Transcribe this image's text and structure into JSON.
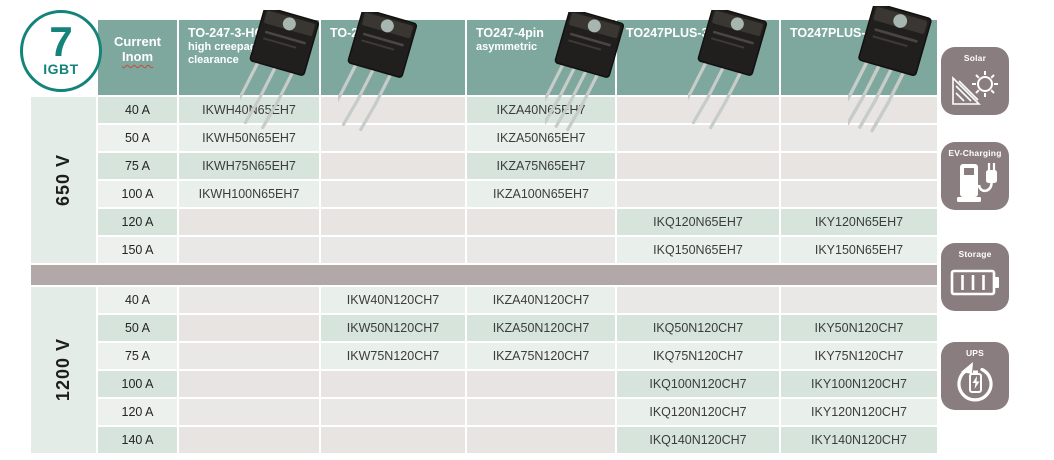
{
  "badge": {
    "number": "7",
    "label": "IGBT"
  },
  "header": {
    "current_label": "Current",
    "current_sub": "Inom",
    "columns": [
      {
        "label": "TO-247-3-HCC",
        "sublabel": "high creepage, high clearance"
      },
      {
        "label": "TO-247-3",
        "sublabel": ""
      },
      {
        "label": "TO247-4pin",
        "sublabel": "asymmetric"
      },
      {
        "label": "TO247PLUS-3pin",
        "sublabel": ""
      },
      {
        "label": "TO247PLUS-4pin",
        "sublabel": ""
      }
    ]
  },
  "sections": [
    {
      "voltage": "650 V",
      "rows": [
        {
          "current": "40 A",
          "parts": [
            "IKWH40N65EH7",
            "",
            "IKZA40N65EH7",
            "",
            ""
          ]
        },
        {
          "current": "50 A",
          "parts": [
            "IKWH50N65EH7",
            "",
            "IKZA50N65EH7",
            "",
            ""
          ]
        },
        {
          "current": "75 A",
          "parts": [
            "IKWH75N65EH7",
            "",
            "IKZA75N65EH7",
            "",
            ""
          ]
        },
        {
          "current": "100 A",
          "parts": [
            "IKWH100N65EH7",
            "",
            "IKZA100N65EH7",
            "",
            ""
          ]
        },
        {
          "current": "120 A",
          "parts": [
            "",
            "",
            "",
            "IKQ120N65EH7",
            "IKY120N65EH7"
          ]
        },
        {
          "current": "150 A",
          "parts": [
            "",
            "",
            "",
            "IKQ150N65EH7",
            "IKY150N65EH7"
          ]
        }
      ]
    },
    {
      "voltage": "1200 V",
      "rows": [
        {
          "current": "40 A",
          "parts": [
            "",
            "IKW40N120CH7",
            "IKZA40N120CH7",
            "",
            ""
          ]
        },
        {
          "current": "50 A",
          "parts": [
            "",
            "IKW50N120CH7",
            "IKZA50N120CH7",
            "IKQ50N120CH7",
            "IKY50N120CH7"
          ]
        },
        {
          "current": "75 A",
          "parts": [
            "",
            "IKW75N120CH7",
            "IKZA75N120CH7",
            "IKQ75N120CH7",
            "IKY75N120CH7"
          ]
        },
        {
          "current": "100 A",
          "parts": [
            "",
            "",
            "",
            "IKQ100N120CH7",
            "IKY100N120CH7"
          ]
        },
        {
          "current": "120 A",
          "parts": [
            "",
            "",
            "",
            "IKQ120N120CH7",
            "IKY120N120CH7"
          ]
        },
        {
          "current": "140 A",
          "parts": [
            "",
            "",
            "",
            "IKQ140N120CH7",
            "IKY140N120CH7"
          ]
        }
      ]
    }
  ],
  "applications": [
    {
      "label": "Solar",
      "icon": "solar-icon"
    },
    {
      "label": "EV-Charging",
      "icon": "ev-charging-icon"
    },
    {
      "label": "Storage",
      "icon": "storage-icon"
    },
    {
      "label": "UPS",
      "icon": "ups-icon"
    }
  ],
  "colors": {
    "accent_teal": "#14837a",
    "header_green": "#7ea89d",
    "row_green_dark": "#d6e4dc",
    "row_green_light": "#e9efeb",
    "cell_gray": "#e7e4e1",
    "separator_mauve": "#b2a8a8",
    "icon_background": "#8a7d80"
  }
}
